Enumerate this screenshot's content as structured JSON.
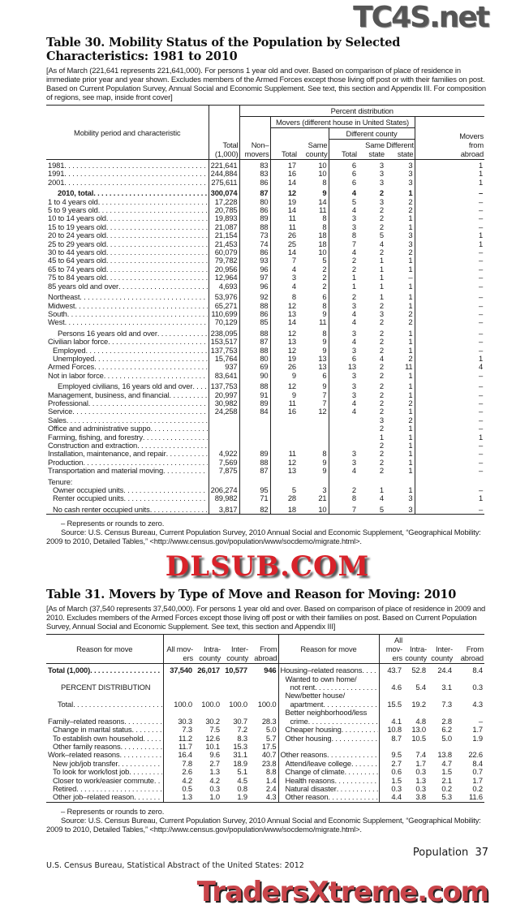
{
  "watermarks": {
    "top": "TC4S.net",
    "middle": "DLSUB.COM",
    "bottom": "TradersXtreme.com"
  },
  "table30": {
    "title": "Table 30. Mobility Status of the Population by Selected Characteristics: 1981 to 2010",
    "headnote": "[As of March (221,641 represents 221,641,000). For persons 1 year old and over. Based on comparison of place of residence in immediate prior year and year shown. Excludes members of the Armed Forces except those living off post or with their families on post. Based on Current Population Survey, Annual Social and Economic Supplement. See text, this section and Appendix III. For composition of regions, see map, inside front cover]",
    "header": {
      "stub": "Mobility period and characteristic",
      "percent_distribution": "Percent distribution",
      "movers_us": "Movers (different house in United States)",
      "different_county": "Different county",
      "total": "Total (1,000)",
      "nonmovers": "Non– movers",
      "movers_total": "Total",
      "same_county": "Same county",
      "dc_total": "Total",
      "same_state": "Same state",
      "different_state": "Different state",
      "from_abroad": "Movers from abroad"
    },
    "groups": [
      {
        "rows": [
          {
            "label": "1981",
            "values": [
              "221,641",
              "83",
              "17",
              "10",
              "6",
              "3",
              "3",
              "1"
            ]
          },
          {
            "label": "1991",
            "values": [
              "244,884",
              "83",
              "16",
              "10",
              "6",
              "3",
              "3",
              "1"
            ]
          },
          {
            "label": "2001",
            "values": [
              "275,611",
              "86",
              "14",
              "8",
              "6",
              "3",
              "3",
              "1"
            ]
          }
        ]
      },
      {
        "rows": [
          {
            "label": "2010, total",
            "level": 2,
            "bold": true,
            "values": [
              "300,074",
              "87",
              "12",
              "9",
              "4",
              "2",
              "1",
              "–"
            ]
          },
          {
            "label": "1 to 4 years old",
            "values": [
              "17,228",
              "80",
              "19",
              "14",
              "5",
              "3",
              "2",
              "–"
            ]
          },
          {
            "label": "5 to 9 years old",
            "values": [
              "20,785",
              "86",
              "14",
              "11",
              "4",
              "2",
              "2",
              "–"
            ]
          },
          {
            "label": "10 to 14 years old",
            "values": [
              "19,893",
              "89",
              "11",
              "8",
              "3",
              "2",
              "1",
              "–"
            ]
          },
          {
            "label": "15 to 19 years old",
            "values": [
              "21,087",
              "88",
              "11",
              "8",
              "3",
              "2",
              "1",
              "–"
            ]
          },
          {
            "label": "20 to 24 years old",
            "values": [
              "21,154",
              "73",
              "26",
              "18",
              "8",
              "5",
              "3",
              "1"
            ]
          },
          {
            "label": "25 to 29 years old",
            "values": [
              "21,453",
              "74",
              "25",
              "18",
              "7",
              "4",
              "3",
              "1"
            ]
          },
          {
            "label": "30 to 44 years old",
            "values": [
              "60,079",
              "86",
              "14",
              "10",
              "4",
              "2",
              "2",
              "–"
            ]
          },
          {
            "label": "45 to 64 years old",
            "values": [
              "79,782",
              "93",
              "7",
              "5",
              "2",
              "1",
              "1",
              "–"
            ]
          },
          {
            "label": "65 to 74 years old",
            "values": [
              "20,956",
              "96",
              "4",
              "2",
              "2",
              "1",
              "1",
              "–"
            ]
          },
          {
            "label": "75 to 84 years old",
            "values": [
              "12,964",
              "97",
              "3",
              "2",
              "1",
              "1",
              "–",
              "–"
            ]
          },
          {
            "label": "85 years old and over",
            "values": [
              "4,693",
              "96",
              "4",
              "2",
              "1",
              "1",
              "1",
              "–"
            ]
          }
        ]
      },
      {
        "rows": [
          {
            "label": "Northeast",
            "values": [
              "53,976",
              "92",
              "8",
              "6",
              "2",
              "1",
              "1",
              "–"
            ]
          },
          {
            "label": "Midwest",
            "values": [
              "65,271",
              "88",
              "12",
              "8",
              "3",
              "2",
              "1",
              "–"
            ]
          },
          {
            "label": "South",
            "values": [
              "110,699",
              "86",
              "13",
              "9",
              "4",
              "3",
              "2",
              "–"
            ]
          },
          {
            "label": "West",
            "values": [
              "70,129",
              "85",
              "14",
              "11",
              "4",
              "2",
              "2",
              "–"
            ]
          }
        ]
      },
      {
        "rows": [
          {
            "label": "Persons 16 years old and over",
            "level": 2,
            "values": [
              "238,095",
              "88",
              "12",
              "8",
              "3",
              "2",
              "1",
              "–"
            ]
          },
          {
            "label": "Civilian labor force",
            "values": [
              "153,517",
              "87",
              "13",
              "9",
              "4",
              "2",
              "1",
              "–"
            ]
          },
          {
            "label": "Employed",
            "level": 1,
            "values": [
              "137,753",
              "88",
              "12",
              "9",
              "3",
              "2",
              "1",
              "–"
            ]
          },
          {
            "label": "Unemployed",
            "level": 1,
            "values": [
              "15,764",
              "80",
              "19",
              "13",
              "6",
              "4",
              "2",
              "1"
            ]
          },
          {
            "label": "Armed Forces",
            "values": [
              "937",
              "69",
              "26",
              "13",
              "13",
              "2",
              "11",
              "4"
            ]
          },
          {
            "label": "Not in labor force",
            "values": [
              "83,641",
              "90",
              "9",
              "6",
              "3",
              "2",
              "1",
              "–"
            ]
          }
        ]
      },
      {
        "rows": [
          {
            "label": "Employed civilians, 16 years old and over",
            "level": 2,
            "values": [
              "137,753",
              "88",
              "12",
              "9",
              "3",
              "2",
              "1",
              "–"
            ]
          },
          {
            "label": "Management, business, and financial",
            "values": [
              "20,997",
              "91",
              "9",
              "7",
              "3",
              "2",
              "1",
              "–"
            ]
          },
          {
            "label": "Professional",
            "values": [
              "30,982",
              "89",
              "11",
              "7",
              "4",
              "2",
              "2",
              "–"
            ]
          },
          {
            "label": "Service",
            "values": [
              "24,258",
              "84",
              "16",
              "12",
              "4",
              "2",
              "1",
              "–"
            ]
          },
          {
            "label": "Sales",
            "values": [
              "",
              "",
              "",
              "",
              "",
              "3",
              "2",
              "–"
            ]
          },
          {
            "label": "Office and administrative suppo",
            "values": [
              "",
              "",
              "",
              "",
              "",
              "2",
              "1",
              "–"
            ]
          },
          {
            "label": "Farming, fishing, and forestry",
            "values": [
              "",
              "",
              "",
              "",
              "",
              "1",
              "1",
              "1"
            ]
          },
          {
            "label": "Construction and extraction",
            "values": [
              "",
              "",
              "",
              "",
              "",
              "2",
              "1",
              "–"
            ]
          },
          {
            "label": "Installation, maintenance, and repair",
            "values": [
              "4,922",
              "89",
              "11",
              "8",
              "3",
              "2",
              "1",
              "–"
            ]
          },
          {
            "label": "Production",
            "values": [
              "7,569",
              "88",
              "12",
              "9",
              "3",
              "2",
              "1",
              "–"
            ]
          },
          {
            "label": "Transportation and material moving",
            "values": [
              "7,875",
              "87",
              "13",
              "9",
              "4",
              "2",
              "1",
              "–"
            ]
          }
        ]
      },
      {
        "rows": [
          {
            "label": "Tenure:",
            "nodots": true,
            "values": [
              "",
              "",
              "",
              "",
              "",
              "",
              "",
              ""
            ]
          },
          {
            "label": "Owner occupied units",
            "level": 1,
            "values": [
              "206,274",
              "95",
              "5",
              "3",
              "2",
              "1",
              "1",
              "–"
            ]
          },
          {
            "label": "Renter occupied units",
            "level": 1,
            "values": [
              "89,982",
              "71",
              "28",
              "21",
              "8",
              "4",
              "3",
              "1"
            ]
          }
        ]
      },
      {
        "rows": [
          {
            "label": "No cash renter occupied units",
            "level": 1,
            "values": [
              "3,817",
              "82",
              "18",
              "10",
              "7",
              "5",
              "3",
              "–"
            ]
          }
        ]
      }
    ],
    "footnote": "– Represents or rounds to zero.",
    "source": "Source: U.S. Census Bureau, Current Population Survey, 2010 Annual Social and Economic Supplement, “Geographical Mobility: 2009 to 2010, Detailed Tables,” <http://www.census.gov/population/www/socdemo/migrate.html>."
  },
  "table31": {
    "title": "Table 31. Movers by Type of Move and Reason for Moving: 2010",
    "headnote": "[As of March (37,540 represents 37,540,000). For persons 1 year old and over. Based on comparison of place of residence in 2009 and 2010. Excludes members of the Armed Forces except those living off post or with their families on post. Based on Current Population Survey, Annual Social and Economic Supplement. See text, this section and Appendix III]",
    "header": {
      "reason": "Reason for move",
      "all_movers": "All mov- ers",
      "intra": "Intra- county",
      "inter": "Inter- county",
      "abroad": "From abroad"
    },
    "left": [
      {
        "label": "Total (1,000)",
        "bold": true,
        "values": [
          "37,540",
          "26,017",
          "10,577",
          "946"
        ]
      },
      {
        "label": "",
        "values": [
          "",
          "",
          "",
          ""
        ]
      },
      {
        "label": "PERCENT DISTRIBUTION",
        "heading": true,
        "values": [
          "",
          "",
          "",
          ""
        ]
      },
      {
        "label": "",
        "values": [
          "",
          "",
          "",
          ""
        ]
      },
      {
        "label": "Total",
        "level": 2,
        "values": [
          "100.0",
          "100.0",
          "100.0",
          "100.0"
        ]
      },
      {
        "label": "",
        "values": [
          "",
          "",
          "",
          ""
        ]
      },
      {
        "label": "Family–related reasons",
        "values": [
          "30.3",
          "30.2",
          "30.7",
          "28.3"
        ]
      },
      {
        "label": "Change in marital status",
        "level": 1,
        "values": [
          "7.3",
          "7.5",
          "7.2",
          "5.0"
        ]
      },
      {
        "label": "To establish own household",
        "level": 1,
        "values": [
          "11.2",
          "12.6",
          "8.3",
          "5.7"
        ]
      },
      {
        "label": "Other family reasons",
        "level": 1,
        "values": [
          "11.7",
          "10.1",
          "15.3",
          "17.5"
        ]
      },
      {
        "label": "Work–related reasons",
        "values": [
          "16.4",
          "9.6",
          "31.1",
          "40.7"
        ]
      },
      {
        "label": "New job/job transfer",
        "level": 1,
        "values": [
          "7.8",
          "2.7",
          "18.9",
          "23.8"
        ]
      },
      {
        "label": "To look for work/lost job",
        "level": 1,
        "values": [
          "2.6",
          "1.3",
          "5.1",
          "8.8"
        ]
      },
      {
        "label": "Closer to work/easier commute",
        "level": 1,
        "values": [
          "4.2",
          "4.2",
          "4.5",
          "1.4"
        ]
      },
      {
        "label": "Retired",
        "level": 1,
        "values": [
          "0.5",
          "0.3",
          "0.8",
          "2.4"
        ]
      },
      {
        "label": "Other job–related reason",
        "level": 1,
        "values": [
          "1.3",
          "1.0",
          "1.9",
          "4.3"
        ]
      }
    ],
    "right": [
      {
        "label": "Housing–related reasons",
        "values": [
          "43.7",
          "52.8",
          "24.4",
          "8.4"
        ]
      },
      {
        "label": "Wanted to own home/",
        "level": 1,
        "nodots": true,
        "values": [
          "",
          "",
          "",
          ""
        ]
      },
      {
        "label": "not rent",
        "level": 2,
        "values": [
          "4.6",
          "5.4",
          "3.1",
          "0.3"
        ]
      },
      {
        "label": "New/better house/",
        "level": 1,
        "nodots": true,
        "values": [
          "",
          "",
          "",
          ""
        ]
      },
      {
        "label": "apartment",
        "level": 2,
        "values": [
          "15.5",
          "19.2",
          "7.3",
          "4.3"
        ]
      },
      {
        "label": "Better neighborhood/less",
        "level": 1,
        "nodots": true,
        "values": [
          "",
          "",
          "",
          ""
        ]
      },
      {
        "label": "crime",
        "level": 2,
        "values": [
          "4.1",
          "4.8",
          "2.8",
          "–"
        ]
      },
      {
        "label": "Cheaper housing",
        "level": 1,
        "values": [
          "10.8",
          "13.0",
          "6.2",
          "1.7"
        ]
      },
      {
        "label": "Other housing",
        "level": 1,
        "values": [
          "8.7",
          "10.5",
          "5.0",
          "1.9"
        ]
      },
      {
        "label": "",
        "values": [
          "",
          "",
          "",
          ""
        ]
      },
      {
        "label": "Other reasons",
        "values": [
          "9.5",
          "7.4",
          "13.8",
          "22.6"
        ]
      },
      {
        "label": "Attend/leave college",
        "level": 1,
        "values": [
          "2.7",
          "1.7",
          "4.7",
          "8.4"
        ]
      },
      {
        "label": "Change of climate",
        "level": 1,
        "values": [
          "0.6",
          "0.3",
          "1.5",
          "0.7"
        ]
      },
      {
        "label": "Health reasons",
        "level": 1,
        "values": [
          "1.5",
          "1.3",
          "2.1",
          "1.7"
        ]
      },
      {
        "label": "Natural disaster",
        "level": 1,
        "values": [
          "0.3",
          "0.3",
          "0.2",
          "0.2"
        ]
      },
      {
        "label": "Other reason",
        "level": 1,
        "values": [
          "4.4",
          "3.8",
          "5.3",
          "11.6"
        ]
      }
    ],
    "footnote": "– Represents or rounds to zero.",
    "source": "Source: U.S. Census Bureau, Current Population Survey, 2010 Annual Social and Economic Supplement, “Geographical Mobility: 2009 to 2010, Detailed Tables,” <http://www.census.gov/population/www/socdemo/migrate.html>."
  },
  "footer": {
    "section_page": "Population  37",
    "publication": "U.S. Census Bureau, Statistical Abstract of the United States: 2012"
  }
}
